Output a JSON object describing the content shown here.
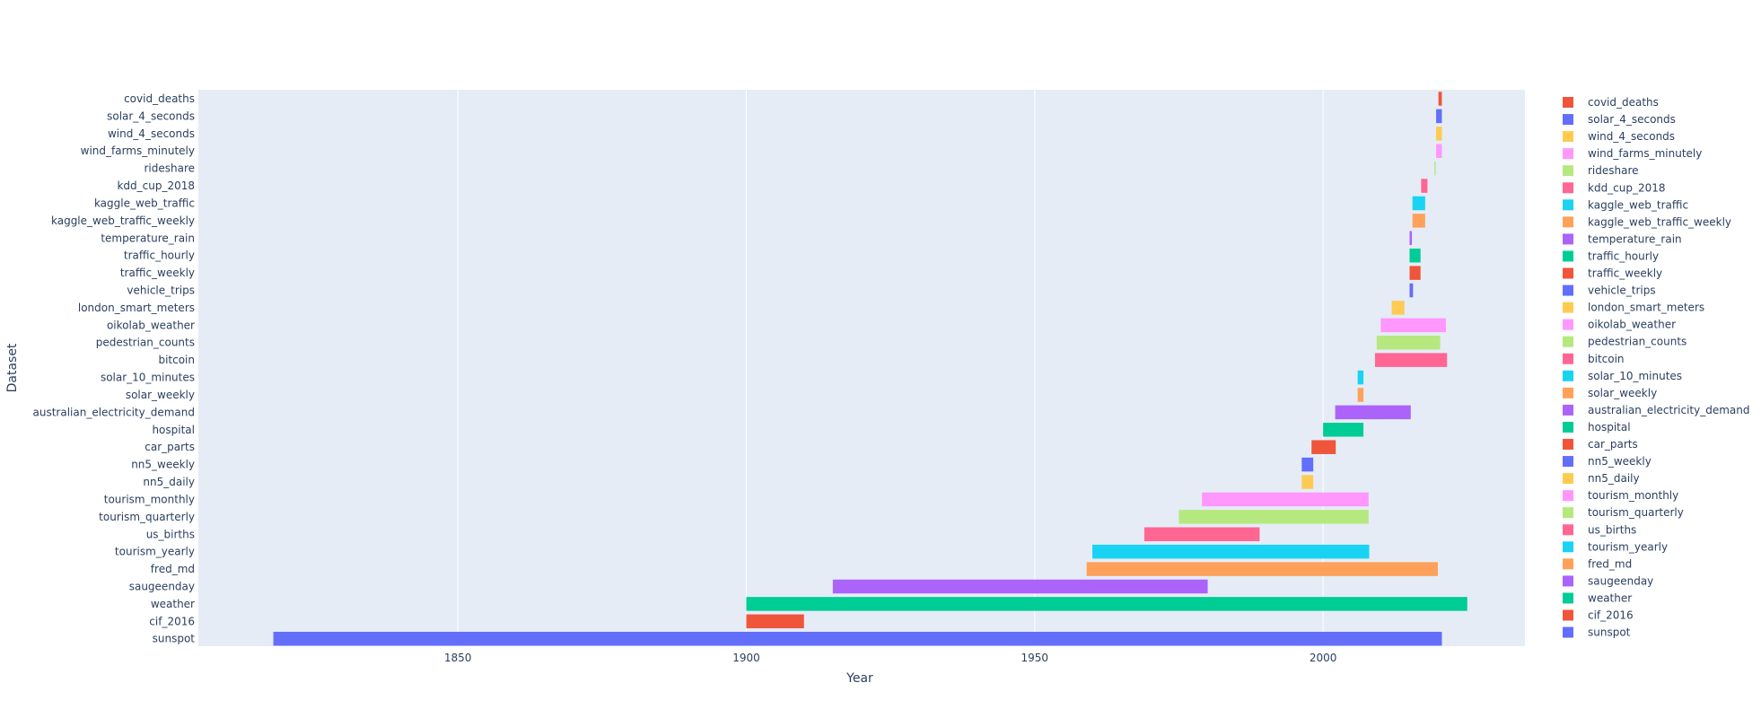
{
  "chart_data": {
    "type": "bar",
    "orientation": "horizontal-timeline",
    "title": "",
    "xlabel": "Year",
    "ylabel": "Dataset",
    "xlim": [
      1805,
      2035
    ],
    "xticks": [
      "1850",
      "1900",
      "1950",
      "2000"
    ],
    "grid": true,
    "legend_position": "right",
    "series": [
      {
        "name": "covid_deaths",
        "start": 2020.0,
        "end": 2020.6,
        "color": "#EF553B"
      },
      {
        "name": "solar_4_seconds",
        "start": 2019.6,
        "end": 2020.6,
        "color": "#636EFA"
      },
      {
        "name": "wind_4_seconds",
        "start": 2019.6,
        "end": 2020.6,
        "color": "#FECB52"
      },
      {
        "name": "wind_farms_minutely",
        "start": 2019.6,
        "end": 2020.6,
        "color": "#FF97FF"
      },
      {
        "name": "rideshare",
        "start": 2019.3,
        "end": 2019.5,
        "color": "#B6E880"
      },
      {
        "name": "kdd_cup_2018",
        "start": 2017.0,
        "end": 2018.1,
        "color": "#FF6692"
      },
      {
        "name": "kaggle_web_traffic",
        "start": 2015.5,
        "end": 2017.7,
        "color": "#19D3F3"
      },
      {
        "name": "kaggle_web_traffic_weekly",
        "start": 2015.5,
        "end": 2017.7,
        "color": "#FFA15A"
      },
      {
        "name": "temperature_rain",
        "start": 2015.0,
        "end": 2015.4,
        "color": "#AB63FA"
      },
      {
        "name": "traffic_hourly",
        "start": 2015.0,
        "end": 2016.9,
        "color": "#00CC96"
      },
      {
        "name": "traffic_weekly",
        "start": 2015.0,
        "end": 2016.9,
        "color": "#EF553B"
      },
      {
        "name": "vehicle_trips",
        "start": 2015.0,
        "end": 2015.6,
        "color": "#636EFA"
      },
      {
        "name": "london_smart_meters",
        "start": 2011.9,
        "end": 2014.1,
        "color": "#FECB52"
      },
      {
        "name": "oikolab_weather",
        "start": 2010.0,
        "end": 2021.3,
        "color": "#FF97FF"
      },
      {
        "name": "pedestrian_counts",
        "start": 2009.3,
        "end": 2020.3,
        "color": "#B6E880"
      },
      {
        "name": "bitcoin",
        "start": 2009.0,
        "end": 2021.5,
        "color": "#FF6692"
      },
      {
        "name": "solar_10_minutes",
        "start": 2006.0,
        "end": 2007.0,
        "color": "#19D3F3"
      },
      {
        "name": "solar_weekly",
        "start": 2006.0,
        "end": 2007.0,
        "color": "#FFA15A"
      },
      {
        "name": "australian_electricity_demand",
        "start": 2002.1,
        "end": 2015.2,
        "color": "#AB63FA"
      },
      {
        "name": "hospital",
        "start": 2000.0,
        "end": 2007.0,
        "color": "#00CC96"
      },
      {
        "name": "car_parts",
        "start": 1998.0,
        "end": 2002.2,
        "color": "#EF553B"
      },
      {
        "name": "nn5_weekly",
        "start": 1996.3,
        "end": 1998.3,
        "color": "#636EFA"
      },
      {
        "name": "nn5_daily",
        "start": 1996.3,
        "end": 1998.3,
        "color": "#FECB52"
      },
      {
        "name": "tourism_monthly",
        "start": 1979.0,
        "end": 2007.9,
        "color": "#FF97FF"
      },
      {
        "name": "tourism_quarterly",
        "start": 1975.0,
        "end": 2007.9,
        "color": "#B6E880"
      },
      {
        "name": "us_births",
        "start": 1969.0,
        "end": 1989.0,
        "color": "#FF6692"
      },
      {
        "name": "tourism_yearly",
        "start": 1960.0,
        "end": 2008.0,
        "color": "#19D3F3"
      },
      {
        "name": "fred_md",
        "start": 1959.0,
        "end": 2019.9,
        "color": "#FFA15A"
      },
      {
        "name": "saugeenday",
        "start": 1915.0,
        "end": 1980.0,
        "color": "#AB63FA"
      },
      {
        "name": "weather",
        "start": 1900.0,
        "end": 2025.0,
        "color": "#00CC96"
      },
      {
        "name": "cif_2016",
        "start": 1900.0,
        "end": 1910.0,
        "color": "#EF553B"
      },
      {
        "name": "sunspot",
        "start": 1818.0,
        "end": 2020.6,
        "color": "#636EFA"
      }
    ]
  }
}
